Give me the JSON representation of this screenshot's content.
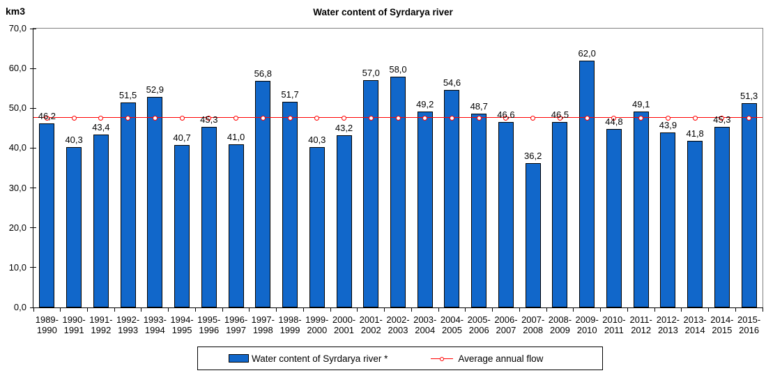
{
  "header": {
    "unit_label": "km3"
  },
  "chart_data": {
    "type": "bar",
    "title": "Water content of Syrdarya river",
    "ylabel": "km3",
    "xlabel": "",
    "ylim": [
      0,
      70
    ],
    "ytick_step": 10,
    "decimal_separator": ",",
    "grid": "off",
    "legend_position": "bottom",
    "value_labels": "above-bars",
    "categories": [
      "1989-1990",
      "1990-1991",
      "1991-1992",
      "1992-1993",
      "1993-1994",
      "1994-1995",
      "1995-1996",
      "1996-1997",
      "1997-1998",
      "1998-1999",
      "1999-2000",
      "2000-2001",
      "2001-2002",
      "2002-2003",
      "2003-2004",
      "2004-2005",
      "2005-2006",
      "2006-2007",
      "2007-2008",
      "2008-2009",
      "2009-2010",
      "2010-2011",
      "2011-2012",
      "2012-2013",
      "2013-2014",
      "2014-2015",
      "2015-2016"
    ],
    "series": [
      {
        "name": "Water content of Syrdarya river *",
        "type": "bar",
        "color": "#1167CA",
        "values": [
          46.2,
          40.3,
          43.4,
          51.5,
          52.9,
          40.7,
          45.3,
          41.0,
          56.8,
          51.7,
          40.3,
          43.2,
          57.0,
          58.0,
          49.2,
          54.6,
          48.7,
          46.6,
          36.2,
          46.5,
          62.0,
          44.8,
          49.1,
          43.9,
          41.8,
          45.3,
          51.3
        ]
      },
      {
        "name": "Average annual flow",
        "type": "line",
        "color": "#FF0000",
        "value": 47.8
      }
    ]
  },
  "legend": {
    "items": [
      {
        "label": "Water content of Syrdarya river *"
      },
      {
        "label": "Average annual flow"
      }
    ]
  }
}
